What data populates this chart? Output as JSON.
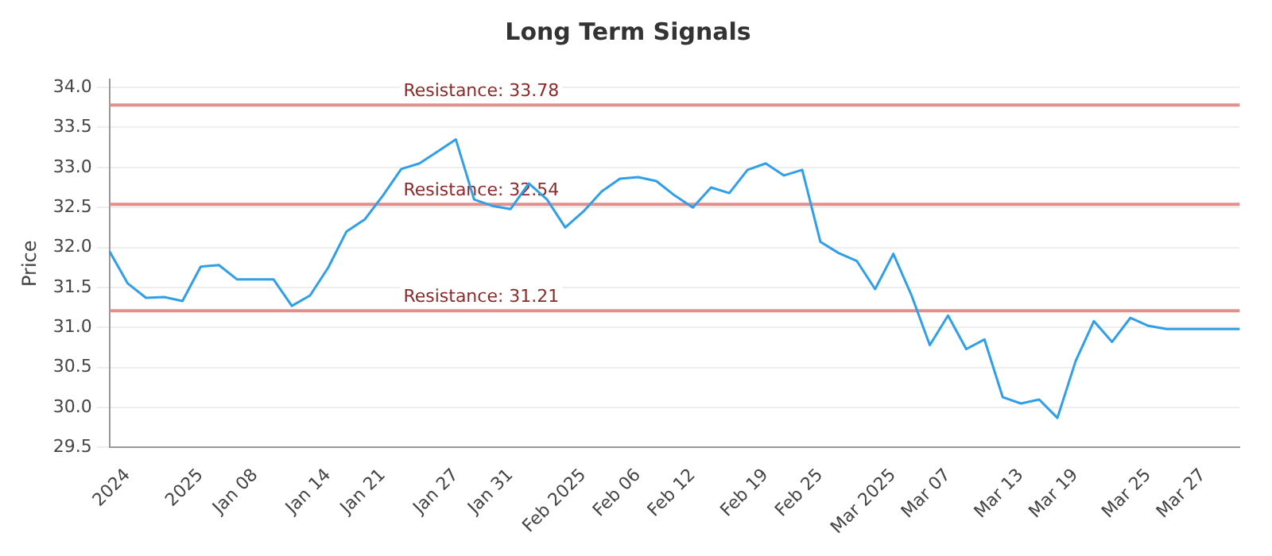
{
  "chart_data": {
    "type": "line",
    "title": "Long Term Signals",
    "ylabel": "Price",
    "categories": [
      null,
      "2024",
      null,
      null,
      null,
      "2025",
      null,
      null,
      "Jan 08",
      null,
      null,
      null,
      "Jan 14",
      null,
      null,
      "Jan 21",
      null,
      null,
      null,
      "Jan 27",
      null,
      null,
      "Jan 31",
      null,
      null,
      null,
      "Feb 2025",
      null,
      null,
      "Feb 06",
      null,
      null,
      "Feb 12",
      null,
      null,
      null,
      "Feb 19",
      null,
      null,
      "Feb 25",
      null,
      null,
      null,
      "Mar 2025",
      null,
      null,
      "Mar 07",
      null,
      null,
      null,
      "Mar 13",
      null,
      null,
      "Mar 19",
      null,
      null,
      null,
      "Mar 25",
      null,
      null,
      "Mar 27",
      null,
      null
    ],
    "series": [
      {
        "color": "#2f9fe8",
        "values": [
          31.95,
          31.55,
          31.37,
          31.38,
          31.33,
          31.76,
          31.78,
          31.6,
          31.6,
          31.6,
          31.27,
          31.4,
          31.75,
          32.2,
          32.35,
          32.65,
          32.98,
          33.05,
          33.2,
          33.35,
          32.6,
          32.52,
          32.48,
          32.8,
          32.6,
          32.25,
          32.45,
          32.7,
          32.86,
          32.88,
          32.83,
          32.65,
          32.5,
          32.75,
          32.68,
          32.97,
          33.05,
          32.9,
          32.97,
          32.07,
          31.93,
          31.83,
          31.48,
          31.92,
          31.4,
          30.78,
          31.15,
          30.73,
          30.85,
          30.13,
          30.05,
          30.1,
          29.87,
          30.58,
          31.08,
          30.82,
          31.12,
          31.02,
          30.98,
          30.98,
          30.98,
          30.98,
          30.98
        ]
      }
    ],
    "ylim": [
      29.5,
      34.1
    ],
    "yticks": [
      29.5,
      {
        "value": 30,
        "label": "30.0"
      },
      30.5,
      {
        "value": 31,
        "label": "31.0"
      },
      31.5,
      {
        "value": 32,
        "label": "32.0"
      },
      32.5,
      {
        "value": 33,
        "label": "33.0"
      },
      33.5,
      {
        "value": 34,
        "label": "34.0"
      }
    ],
    "ref_lines": [
      {
        "axis": "y",
        "value": 33.78,
        "label": "Resistance: 33.78",
        "color": "#e0908c"
      },
      {
        "axis": "y",
        "value": 32.54,
        "label": "Resistance: 32.54",
        "color": "#e0908c"
      },
      {
        "axis": "y",
        "value": 31.21,
        "label": "Resistance: 31.21",
        "color": "#e0908c"
      }
    ],
    "grid": "y",
    "legend": false,
    "marker": "none",
    "line_style": "solid"
  }
}
